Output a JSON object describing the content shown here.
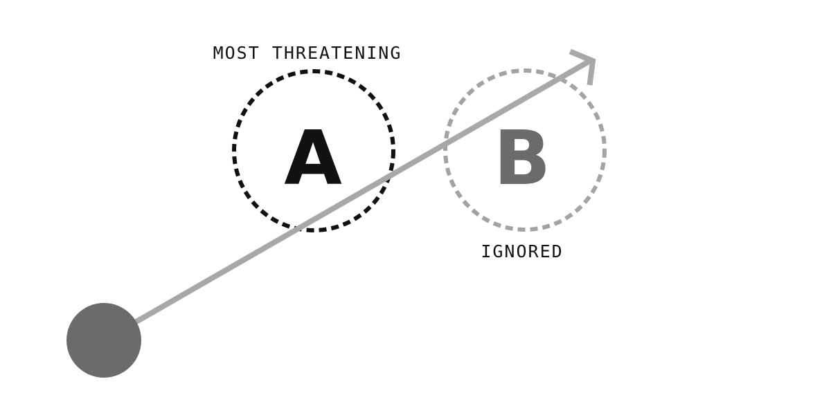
{
  "obstacles": [
    {
      "letter": "A",
      "label": "MOST THREATENING",
      "status": "most threatening",
      "color": "#111111"
    },
    {
      "letter": "B",
      "label": "IGNORED",
      "status": "ignored",
      "color": "#a3a3a3",
      "letter_color": "#6b6b6b",
      "label_color": "#111111"
    }
  ],
  "agent": {
    "shape": "filled-circle",
    "color": "#6b6b6b"
  },
  "trajectory": {
    "shape": "arrow",
    "color": "#a8a8a8"
  }
}
